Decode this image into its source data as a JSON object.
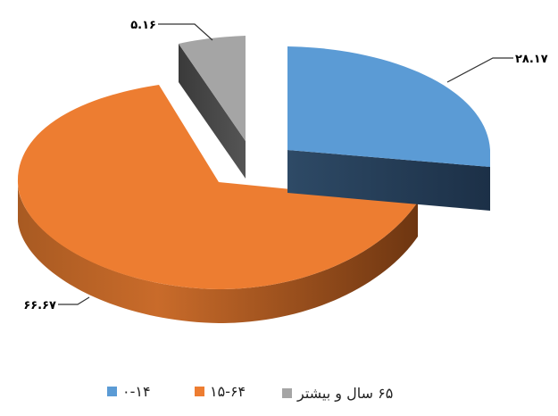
{
  "chart_data": {
    "type": "pie",
    "style": "3d-exploded",
    "slices": [
      {
        "label": "۰-۱۴",
        "value": 28.17,
        "data_label": "۲۸.۱۷",
        "color": "#5B9BD5",
        "side_color": "#253C54"
      },
      {
        "label": "۱۵-۶۴",
        "value": 66.67,
        "data_label": "۶۶.۶۷",
        "color": "#ED7D31",
        "side_color": "#8C4616"
      },
      {
        "label": "۶۵ سال و بیشتر",
        "value": 5.16,
        "data_label": "۵.۱۶",
        "color": "#A5A5A5",
        "side_color": "#404040"
      }
    ],
    "legend_position": "bottom"
  }
}
